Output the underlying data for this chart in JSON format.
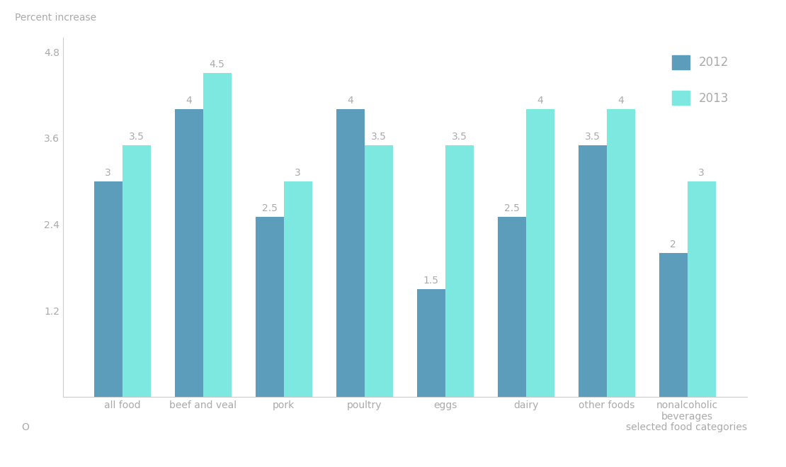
{
  "categories": [
    "all food",
    "beef and veal",
    "pork",
    "poultry",
    "eggs",
    "dairy",
    "other foods",
    "nonalcoholic\nbeverages"
  ],
  "values_2012": [
    3,
    4,
    2.5,
    4,
    1.5,
    2.5,
    3.5,
    2
  ],
  "values_2013": [
    3.5,
    4.5,
    3,
    3.5,
    3.5,
    4,
    4,
    3
  ],
  "color_2012": "#5b9dba",
  "color_2013": "#7de8e0",
  "bar_width": 0.35,
  "ylim": [
    0,
    5.0
  ],
  "yticks": [
    1.2,
    2.4,
    3.6,
    4.8
  ],
  "ytick_labels": [
    "1.2",
    "2.4",
    "3.6",
    "4.8"
  ],
  "ylabel": "Percent increase",
  "xlabel": "selected food categories",
  "legend_labels": [
    "2012",
    "2013"
  ],
  "label_color": "#aaaaaa",
  "axis_color": "#cccccc",
  "background_color": "#ffffff",
  "label_fontsize": 10,
  "tick_fontsize": 10,
  "bar_label_fontsize": 10
}
